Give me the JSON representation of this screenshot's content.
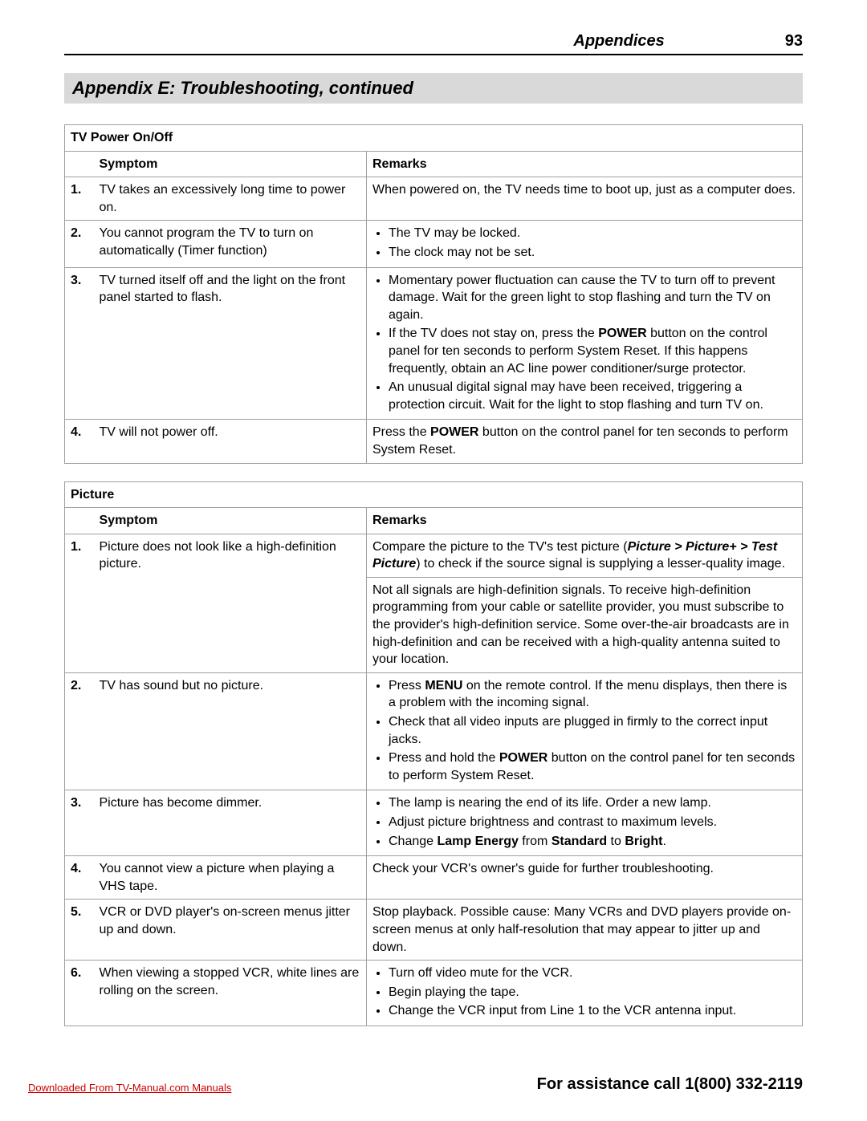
{
  "header": {
    "section": "Appendices",
    "page_number": "93"
  },
  "title": "Appendix E:  Troubleshooting, continued",
  "colors": {
    "title_bg": "#d9d9d9",
    "border": "#9aa0a6",
    "link": "#cc0000",
    "text": "#000000",
    "background": "#ffffff"
  },
  "typography": {
    "body_font": "Arial, Helvetica, sans-serif",
    "body_size_pt": 12,
    "title_size_pt": 17,
    "header_size_pt": 15,
    "footer_size_pt": 15
  },
  "tables": [
    {
      "title": "TV Power On/Off",
      "columns": [
        "Symptom",
        "Remarks"
      ],
      "rows": [
        {
          "n": "1.",
          "symptom": "TV takes an excessively long time to power on.",
          "remarks_text": "When powered on, the TV needs time to boot up, just as a computer does."
        },
        {
          "n": "2.",
          "symptom": "You cannot program the TV to turn on automatically (Timer function)",
          "remarks_list": [
            "The TV may be locked.",
            "The clock may not be set."
          ]
        },
        {
          "n": "3.",
          "symptom": "TV turned itself off and the light on the front panel started to flash.",
          "remarks_list_html": [
            "Momentary power fluctuation can cause the TV to turn off to prevent damage.  Wait for the green light to stop flashing and turn the TV on again.",
            "If the TV does not stay on, press the <b>POWER</b> button on the control panel for ten seconds to perform System Reset.  If this happens frequently, obtain an AC line power conditioner/surge protector.",
            "An unusual digital signal may have been received, triggering a protection circuit.  Wait for the light to stop flashing and turn TV on."
          ]
        },
        {
          "n": "4.",
          "symptom": "TV will not power off.",
          "remarks_html": "Press the <b>POWER</b> button on the control panel for ten seconds to perform System Reset."
        }
      ]
    },
    {
      "title": "Picture",
      "columns": [
        "Symptom",
        "Remarks"
      ],
      "rows": [
        {
          "n": "1.",
          "symptom": "Picture does not look like a high-definition picture.",
          "remarks_paras_html": [
            "Compare the picture to the TV's test picture (<b><i>Picture &gt; Picture+ &gt; Test Picture</i></b>) to check if the source signal is supplying a lesser-quality image.",
            "Not all signals are high-definition signals.  To receive high-definition programming from your cable or satellite provider, you must subscribe to the provider's high-definition service.   Some over-the-air broadcasts are in high-definition and can be received with a high-quality antenna suited to your location."
          ]
        },
        {
          "n": "2.",
          "symptom": "TV has sound but no picture.",
          "remarks_list_html": [
            "Press <b>MENU</b> on the remote control.  If the menu displays, then there is a problem with the incoming signal.",
            "Check that all video inputs are plugged in firmly to the correct input jacks.",
            "Press and hold the <b>POWER</b> button on the control panel for ten seconds to perform System Reset."
          ]
        },
        {
          "n": "3.",
          "symptom": "Picture has become dimmer.",
          "remarks_list_html": [
            "The lamp is nearing the end of its life.  Order a new lamp.",
            "Adjust picture brightness and contrast to maximum levels.",
            "Change <b>Lamp Energy</b> from <b>Standard</b> to <b>Bright</b>."
          ]
        },
        {
          "n": "4.",
          "symptom": "You cannot view a picture when playing a VHS tape.",
          "remarks_text": "Check your VCR's owner's guide for further troubleshooting."
        },
        {
          "n": "5.",
          "symptom": "VCR or DVD player's on-screen menus jitter up and down.",
          "remarks_text": "Stop playback.  Possible cause:  Many VCRs and DVD players provide on-screen menus at only half-resolution that may appear to jitter up and down."
        },
        {
          "n": "6.",
          "symptom": "When viewing a stopped VCR, white lines are rolling on the screen.",
          "remarks_list": [
            "Turn off video mute for the VCR.",
            "Begin playing the tape.",
            "Change the VCR input from Line 1 to the VCR antenna input."
          ]
        }
      ]
    }
  ],
  "footer": {
    "download": "Downloaded From TV-Manual.com Manuals",
    "assist": "For assistance call 1(800) 332-2119"
  }
}
